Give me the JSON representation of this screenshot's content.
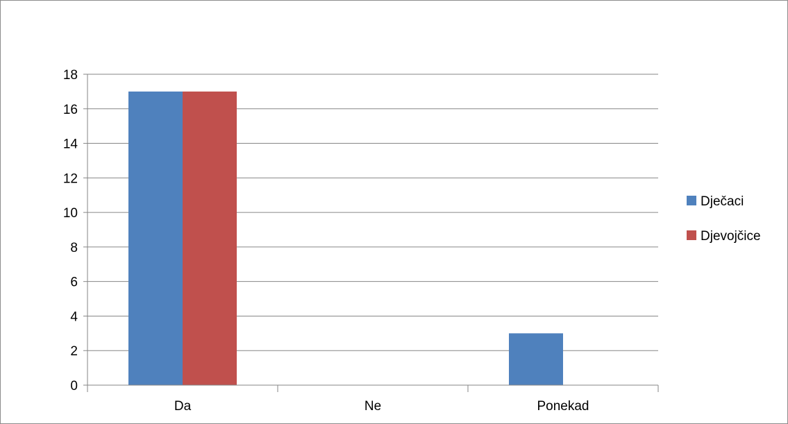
{
  "chart_data": {
    "type": "bar",
    "categories": [
      "Da",
      "Ne",
      "Ponekad"
    ],
    "series": [
      {
        "name": "Dječaci",
        "values": [
          17,
          0,
          3
        ],
        "color": "#4f81bd"
      },
      {
        "name": "Djevojčice",
        "values": [
          17,
          0,
          0
        ],
        "color": "#c0504d"
      }
    ],
    "ylim": [
      0,
      18
    ],
    "yticks": [
      0,
      2,
      4,
      6,
      8,
      10,
      12,
      14,
      16,
      18
    ],
    "grid": true,
    "legend_position": "right",
    "title": "",
    "xlabel": "",
    "ylabel": ""
  }
}
